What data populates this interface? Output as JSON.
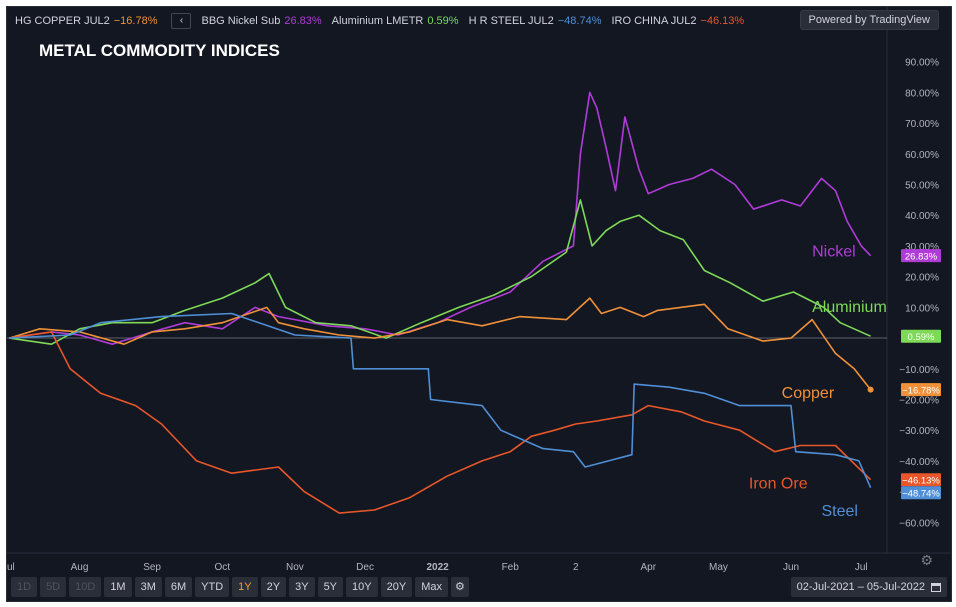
{
  "legend": {
    "items": [
      {
        "label": "HG COPPER JUL2",
        "value": "−16.78%",
        "color": "#f0913a"
      },
      {
        "label": "BBG Nickel Sub",
        "value": "26.83%",
        "color": "#b03cd8"
      },
      {
        "label": "Aluminium LMETR",
        "value": "0.59%",
        "color": "#7ed957"
      },
      {
        "label": "H R STEEL JUL2",
        "value": "−48.74%",
        "color": "#4f8fd6"
      },
      {
        "label": "IRO CHINA JUL2",
        "value": "−46.13%",
        "color": "#e8572a"
      }
    ],
    "collapse_icon": "chevron-left-icon"
  },
  "powered_by": "Powered by TradingView",
  "chart_title": "METAL COMMODITY INDICES",
  "toolbar": {
    "ranges": [
      {
        "label": "1D",
        "state": "disabled"
      },
      {
        "label": "5D",
        "state": "disabled"
      },
      {
        "label": "10D",
        "state": "disabled"
      },
      {
        "label": "1M",
        "state": "normal"
      },
      {
        "label": "3M",
        "state": "normal"
      },
      {
        "label": "6M",
        "state": "normal"
      },
      {
        "label": "YTD",
        "state": "normal"
      },
      {
        "label": "1Y",
        "state": "active"
      },
      {
        "label": "2Y",
        "state": "normal"
      },
      {
        "label": "3Y",
        "state": "normal"
      },
      {
        "label": "5Y",
        "state": "normal"
      },
      {
        "label": "10Y",
        "state": "normal"
      },
      {
        "label": "20Y",
        "state": "normal"
      },
      {
        "label": "Max",
        "state": "normal"
      }
    ],
    "settings_icon": "gear-icon"
  },
  "date_range": "02-Jul-2021 – 05-Jul-2022",
  "calendar_icon": "calendar-icon",
  "axis_settings_icon": "gear-icon",
  "chart_data": {
    "type": "line",
    "title": "METAL COMMODITY INDICES",
    "ylabel": "",
    "ylim": [
      -70,
      100
    ],
    "grid": false,
    "xlim": [
      "2021-07-01",
      "2022-07-12"
    ],
    "x_ticks": [
      {
        "date": "2021-07-01",
        "label": "ul"
      },
      {
        "date": "2021-08-01",
        "label": "Aug"
      },
      {
        "date": "2021-09-01",
        "label": "Sep"
      },
      {
        "date": "2021-10-01",
        "label": "Oct"
      },
      {
        "date": "2021-11-01",
        "label": "Nov"
      },
      {
        "date": "2021-12-01",
        "label": "Dec"
      },
      {
        "date": "2022-01-01",
        "label": "2022"
      },
      {
        "date": "2022-02-01",
        "label": "Feb"
      },
      {
        "date": "2022-03-01",
        "label": "2"
      },
      {
        "date": "2022-04-01",
        "label": "Apr"
      },
      {
        "date": "2022-05-01",
        "label": "May"
      },
      {
        "date": "2022-06-01",
        "label": "Jun"
      },
      {
        "date": "2022-07-01",
        "label": "Jul"
      }
    ],
    "y_ticks": [
      {
        "value": 90,
        "label": "90.00%"
      },
      {
        "value": 80,
        "label": "80.00%"
      },
      {
        "value": 70,
        "label": "70.00%"
      },
      {
        "value": 60,
        "label": "60.00%"
      },
      {
        "value": 50,
        "label": "50.00%"
      },
      {
        "value": 40,
        "label": "40.00%"
      },
      {
        "value": 30,
        "label": "30.00%"
      },
      {
        "value": 20,
        "label": "20.00%"
      },
      {
        "value": 10,
        "label": "10.00%"
      },
      {
        "value": -10,
        "label": "−10.00%"
      },
      {
        "value": -20,
        "label": "−20.00%"
      },
      {
        "value": -30,
        "label": "−30.00%"
      },
      {
        "value": -40,
        "label": "−40.00%"
      },
      {
        "value": -50,
        "label": "−50.00%"
      },
      {
        "value": -60,
        "label": "−60.00%"
      }
    ],
    "zero_line": 0,
    "series": [
      {
        "name": "Nickel",
        "color": "#b03cd8",
        "last_label": "26.83%",
        "last_value": 26.83,
        "points": [
          [
            "2021-07-02",
            0
          ],
          [
            "2021-07-20",
            2
          ],
          [
            "2021-08-01",
            1
          ],
          [
            "2021-08-15",
            -2
          ],
          [
            "2021-09-01",
            2
          ],
          [
            "2021-09-15",
            5
          ],
          [
            "2021-10-01",
            3
          ],
          [
            "2021-10-15",
            10
          ],
          [
            "2021-10-25",
            7
          ],
          [
            "2021-11-01",
            6
          ],
          [
            "2021-11-15",
            4
          ],
          [
            "2021-12-01",
            3
          ],
          [
            "2021-12-15",
            1
          ],
          [
            "2022-01-01",
            5
          ],
          [
            "2022-01-15",
            10
          ],
          [
            "2022-02-01",
            15
          ],
          [
            "2022-02-15",
            25
          ],
          [
            "2022-02-28",
            30
          ],
          [
            "2022-03-03",
            60
          ],
          [
            "2022-03-07",
            80
          ],
          [
            "2022-03-10",
            75
          ],
          [
            "2022-03-14",
            62
          ],
          [
            "2022-03-18",
            48
          ],
          [
            "2022-03-22",
            72
          ],
          [
            "2022-03-28",
            55
          ],
          [
            "2022-04-01",
            47
          ],
          [
            "2022-04-10",
            50
          ],
          [
            "2022-04-20",
            52
          ],
          [
            "2022-04-28",
            55
          ],
          [
            "2022-05-08",
            50
          ],
          [
            "2022-05-16",
            42
          ],
          [
            "2022-05-28",
            45
          ],
          [
            "2022-06-05",
            43
          ],
          [
            "2022-06-14",
            52
          ],
          [
            "2022-06-20",
            48
          ],
          [
            "2022-06-25",
            38
          ],
          [
            "2022-07-01",
            30
          ],
          [
            "2022-07-05",
            26.83
          ]
        ]
      },
      {
        "name": "Aluminium",
        "color": "#7ed957",
        "last_label": "0.59%",
        "last_value": 0.59,
        "points": [
          [
            "2021-07-02",
            0
          ],
          [
            "2021-07-20",
            -2
          ],
          [
            "2021-08-01",
            3
          ],
          [
            "2021-08-15",
            5
          ],
          [
            "2021-09-01",
            5
          ],
          [
            "2021-09-15",
            9
          ],
          [
            "2021-10-01",
            13
          ],
          [
            "2021-10-15",
            18
          ],
          [
            "2021-10-21",
            21
          ],
          [
            "2021-10-28",
            10
          ],
          [
            "2021-11-10",
            5
          ],
          [
            "2021-11-25",
            4
          ],
          [
            "2021-12-10",
            0
          ],
          [
            "2021-12-25",
            5
          ],
          [
            "2022-01-10",
            10
          ],
          [
            "2022-01-25",
            14
          ],
          [
            "2022-02-10",
            20
          ],
          [
            "2022-02-25",
            28
          ],
          [
            "2022-03-03",
            45
          ],
          [
            "2022-03-08",
            30
          ],
          [
            "2022-03-14",
            35
          ],
          [
            "2022-03-20",
            38
          ],
          [
            "2022-03-28",
            40
          ],
          [
            "2022-04-06",
            35
          ],
          [
            "2022-04-16",
            32
          ],
          [
            "2022-04-25",
            22
          ],
          [
            "2022-05-06",
            18
          ],
          [
            "2022-05-20",
            12
          ],
          [
            "2022-06-02",
            15
          ],
          [
            "2022-06-15",
            10
          ],
          [
            "2022-06-22",
            5
          ],
          [
            "2022-07-05",
            0.59
          ]
        ]
      },
      {
        "name": "Copper",
        "color": "#f0913a",
        "last_label": "−16.78%",
        "last_value": -16.78,
        "points": [
          [
            "2021-07-02",
            0
          ],
          [
            "2021-07-15",
            3
          ],
          [
            "2021-08-01",
            2
          ],
          [
            "2021-08-20",
            -2
          ],
          [
            "2021-09-01",
            2
          ],
          [
            "2021-09-15",
            3
          ],
          [
            "2021-10-01",
            5
          ],
          [
            "2021-10-20",
            10
          ],
          [
            "2021-10-25",
            5
          ],
          [
            "2021-11-05",
            3
          ],
          [
            "2021-11-20",
            1
          ],
          [
            "2021-12-05",
            0
          ],
          [
            "2021-12-20",
            2
          ],
          [
            "2022-01-05",
            6
          ],
          [
            "2022-01-20",
            4
          ],
          [
            "2022-02-05",
            7
          ],
          [
            "2022-02-25",
            6
          ],
          [
            "2022-03-07",
            13
          ],
          [
            "2022-03-12",
            8
          ],
          [
            "2022-03-20",
            10
          ],
          [
            "2022-03-30",
            7
          ],
          [
            "2022-04-05",
            9
          ],
          [
            "2022-04-25",
            11
          ],
          [
            "2022-05-05",
            3
          ],
          [
            "2022-05-20",
            -1
          ],
          [
            "2022-06-01",
            0
          ],
          [
            "2022-06-10",
            6
          ],
          [
            "2022-06-20",
            -5
          ],
          [
            "2022-06-28",
            -10
          ],
          [
            "2022-07-05",
            -16.78
          ]
        ]
      },
      {
        "name": "Iron Ore",
        "color": "#e8572a",
        "last_label": "−46.13%",
        "last_value": -46.13,
        "points": [
          [
            "2021-07-02",
            0
          ],
          [
            "2021-07-20",
            2
          ],
          [
            "2021-07-28",
            -10
          ],
          [
            "2021-08-10",
            -18
          ],
          [
            "2021-08-25",
            -22
          ],
          [
            "2021-09-05",
            -28
          ],
          [
            "2021-09-20",
            -40
          ],
          [
            "2021-10-05",
            -44
          ],
          [
            "2021-10-25",
            -42
          ],
          [
            "2021-11-05",
            -50
          ],
          [
            "2021-11-20",
            -57
          ],
          [
            "2021-12-05",
            -56
          ],
          [
            "2021-12-20",
            -52
          ],
          [
            "2022-01-05",
            -45
          ],
          [
            "2022-01-20",
            -40
          ],
          [
            "2022-02-01",
            -37
          ],
          [
            "2022-02-10",
            -32
          ],
          [
            "2022-02-20",
            -30
          ],
          [
            "2022-03-01",
            -28
          ],
          [
            "2022-03-10",
            -27
          ],
          [
            "2022-03-25",
            -25
          ],
          [
            "2022-04-01",
            -22
          ],
          [
            "2022-04-15",
            -24
          ],
          [
            "2022-04-25",
            -27
          ],
          [
            "2022-05-10",
            -30
          ],
          [
            "2022-05-25",
            -37
          ],
          [
            "2022-06-05",
            -35
          ],
          [
            "2022-06-20",
            -35
          ],
          [
            "2022-07-05",
            -46.13
          ]
        ]
      },
      {
        "name": "Steel",
        "color": "#4f8fd6",
        "last_label": "−48.74%",
        "last_value": -48.74,
        "points": [
          [
            "2021-07-02",
            0
          ],
          [
            "2021-07-28",
            1
          ],
          [
            "2021-08-10",
            5
          ],
          [
            "2021-09-05",
            7
          ],
          [
            "2021-10-05",
            8
          ],
          [
            "2021-11-01",
            1
          ],
          [
            "2021-11-25",
            0
          ],
          [
            "2021-11-26",
            -10
          ],
          [
            "2021-12-28",
            -10
          ],
          [
            "2021-12-29",
            -20
          ],
          [
            "2022-01-20",
            -22
          ],
          [
            "2022-01-28",
            -30
          ],
          [
            "2022-02-15",
            -36
          ],
          [
            "2022-02-28",
            -37
          ],
          [
            "2022-03-05",
            -42
          ],
          [
            "2022-03-15",
            -40
          ],
          [
            "2022-03-25",
            -38
          ],
          [
            "2022-03-26",
            -15
          ],
          [
            "2022-04-10",
            -16
          ],
          [
            "2022-04-25",
            -18
          ],
          [
            "2022-05-10",
            -22
          ],
          [
            "2022-05-20",
            -22
          ],
          [
            "2022-06-01",
            -22
          ],
          [
            "2022-06-03",
            -37
          ],
          [
            "2022-06-20",
            -38
          ],
          [
            "2022-06-30",
            -40
          ],
          [
            "2022-07-05",
            -48.74
          ]
        ]
      }
    ],
    "annotations": [
      {
        "text": "Nickel",
        "color": "#b03cd8",
        "date": "2022-06-10",
        "value": 26.5
      },
      {
        "text": "Aluminium",
        "color": "#7ed957",
        "date": "2022-06-10",
        "value": 8.5
      },
      {
        "text": "Copper",
        "color": "#f0913a",
        "date": "2022-05-28",
        "value": -19.5
      },
      {
        "text": "Iron Ore",
        "color": "#e8572a",
        "date": "2022-05-14",
        "value": -49
      },
      {
        "text": "Steel",
        "color": "#4f8fd6",
        "date": "2022-06-14",
        "value": -58
      }
    ]
  }
}
